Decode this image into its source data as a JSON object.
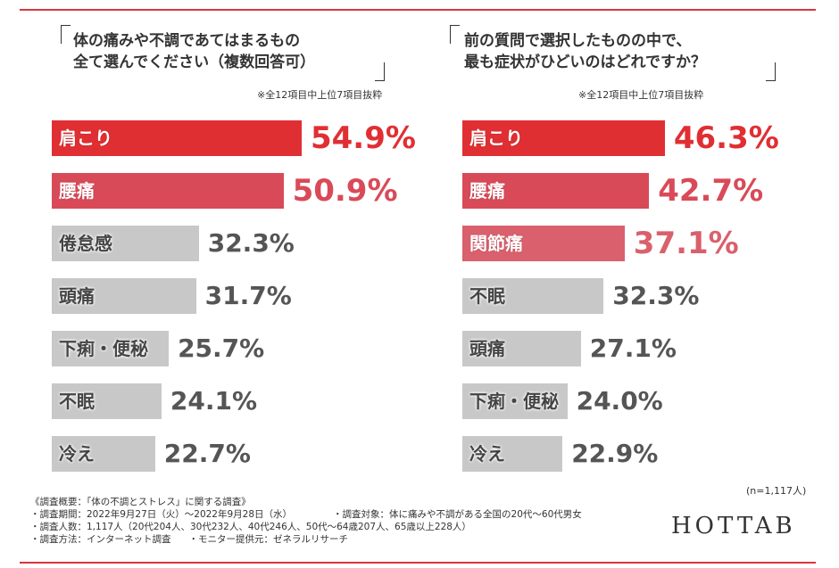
{
  "chart_data": [
    {
      "type": "bar",
      "orientation": "horizontal",
      "title_lines": [
        "体の痛みや不調であてはまるもの",
        "全て選んでください（複数回答可）"
      ],
      "note": "※全12項目中上位7項目抜粋",
      "categories": [
        "肩こり",
        "腰痛",
        "倦怠感",
        "頭痛",
        "下痢・便秘",
        "不眠",
        "冷え"
      ],
      "values": [
        54.9,
        50.9,
        32.3,
        31.7,
        25.7,
        24.1,
        22.7
      ],
      "value_labels": [
        "54.9%",
        "50.9%",
        "32.3%",
        "31.7%",
        "25.7%",
        "24.1%",
        "22.7%"
      ],
      "colors": [
        "#e02f33",
        "#d94a58",
        "#c8c8c8",
        "#c8c8c8",
        "#c8c8c8",
        "#c8c8c8",
        "#c8c8c8"
      ],
      "value_colors": [
        "#e02f33",
        "#d94a58",
        "#555555",
        "#555555",
        "#555555",
        "#555555",
        "#555555"
      ]
    },
    {
      "type": "bar",
      "orientation": "horizontal",
      "title_lines": [
        "前の質問で選択したものの中で、",
        "最も症状がひどいのはどれですか？"
      ],
      "note": "※全12項目中上位7項目抜粋",
      "categories": [
        "肩こり",
        "腰痛",
        "関節痛",
        "不眠",
        "頭痛",
        "下痢・便秘",
        "冷え"
      ],
      "values": [
        46.3,
        42.7,
        37.1,
        32.3,
        27.1,
        24.0,
        22.9
      ],
      "value_labels": [
        "46.3%",
        "42.7%",
        "37.1%",
        "32.3%",
        "27.1%",
        "24.0%",
        "22.9%"
      ],
      "colors": [
        "#e02f33",
        "#d94a58",
        "#d9606c",
        "#c8c8c8",
        "#c8c8c8",
        "#c8c8c8",
        "#c8c8c8"
      ],
      "value_colors": [
        "#e02f33",
        "#d94a58",
        "#d9606c",
        "#555555",
        "#555555",
        "#555555",
        "#555555"
      ]
    }
  ],
  "sample": "(n=1,117人)",
  "footer": [
    "《調査概要：「体の不調とストレス」に関する調査》",
    "・調査期間：2022年9月27日（火）～2022年9月28日（水）",
    "・調査対象：体に痛みや不調がある全国の20代～60代男女",
    "・調査人数：1,117人（20代204人、30代232人、40代246人、50代～64歳207人、65歳以上228人）",
    "・調査方法：インターネット調査",
    "・モニター提供元：ゼネラルリサーチ"
  ],
  "logo": "HOTTAB"
}
